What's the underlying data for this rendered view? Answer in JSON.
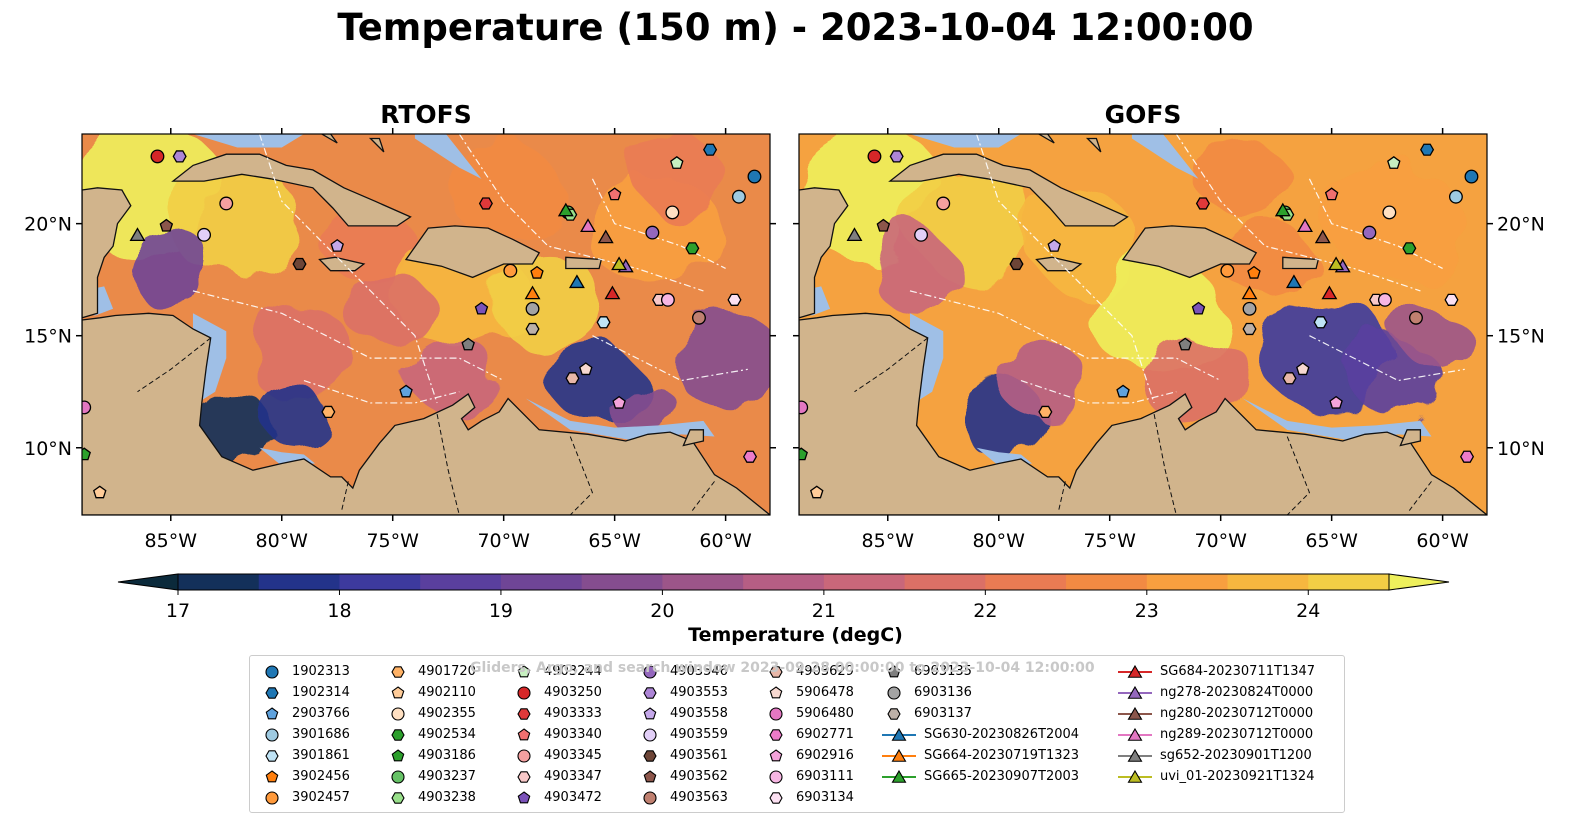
{
  "title": "Temperature (150 m) - 2023-10-04 12:00:00",
  "panels": [
    {
      "title": "RTOFS",
      "field": "rtofs"
    },
    {
      "title": "GOFS",
      "field": "gofs"
    }
  ],
  "map_extent": {
    "lon": [
      -89,
      -58
    ],
    "lat": [
      7,
      24
    ]
  },
  "lon_ticks": [
    {
      "value": -85,
      "label": "85°W"
    },
    {
      "value": -80,
      "label": "80°W"
    },
    {
      "value": -75,
      "label": "75°W"
    },
    {
      "value": -70,
      "label": "70°W"
    },
    {
      "value": -65,
      "label": "65°W"
    },
    {
      "value": -60,
      "label": "60°W"
    }
  ],
  "lat_ticks": [
    {
      "value": 20,
      "label": "20°N"
    },
    {
      "value": 15,
      "label": "15°N"
    },
    {
      "value": 10,
      "label": "10°N"
    }
  ],
  "colorbar": {
    "label": "Temperature (degC)",
    "min": 17,
    "max": 24.5,
    "step": 0.5,
    "ticks": [
      "17",
      "18",
      "19",
      "20",
      "21",
      "22",
      "23",
      "24"
    ],
    "colors": [
      "#0b2a3b",
      "#13305a",
      "#23338a",
      "#3d3a9e",
      "#5a3f9e",
      "#6f4596",
      "#854d8f",
      "#9c5589",
      "#b65e84",
      "#c9677a",
      "#db7066",
      "#ea7b53",
      "#f28a43",
      "#f89f3f",
      "#f6b73f",
      "#f2ce45",
      "#eef05c"
    ],
    "extend": "both"
  },
  "legend_watermark": "Gliders, Argo, and search window 2023-09-28 00:00:00 to 2023-10-04 12:00:00",
  "platforms": [
    {
      "name": "1902313",
      "marker": "circle",
      "color": "#1f77b4",
      "lon": -58.7,
      "lat": 22.1
    },
    {
      "name": "1902314",
      "marker": "hexagon",
      "color": "#1f77b4",
      "lon": -60.7,
      "lat": 23.3
    },
    {
      "name": "2903766",
      "marker": "pentagon",
      "color": "#5fa2dd",
      "lon": -74.4,
      "lat": 12.5
    },
    {
      "name": "3901686",
      "marker": "circle",
      "color": "#9ecae1",
      "lon": -59.4,
      "lat": 21.2
    },
    {
      "name": "3901861",
      "marker": "hexagon",
      "color": "#bfe3f5",
      "lon": -65.5,
      "lat": 15.6
    },
    {
      "name": "3902456",
      "marker": "pentagon",
      "color": "#ff7f0e",
      "lon": -68.5,
      "lat": 17.8
    },
    {
      "name": "3902457",
      "marker": "circle",
      "color": "#ff9a3c",
      "lon": -69.7,
      "lat": 17.9
    },
    {
      "name": "4901720",
      "marker": "hexagon",
      "color": "#ffb266",
      "lon": -77.9,
      "lat": 11.6
    },
    {
      "name": "4902110",
      "marker": "pentagon",
      "color": "#ffcc99",
      "lon": -88.2,
      "lat": 8.0
    },
    {
      "name": "4902355",
      "marker": "circle",
      "color": "#ffe0c2",
      "lon": -62.4,
      "lat": 20.5
    },
    {
      "name": "4902534",
      "marker": "hexagon",
      "color": "#2ca02c",
      "lon": -61.5,
      "lat": 18.9
    },
    {
      "name": "4903186",
      "marker": "pentagon",
      "color": "#2ca02c",
      "lon": -88.9,
      "lat": 9.7
    },
    {
      "name": "4903237",
      "marker": "circle",
      "color": "#66c266",
      "lon": -67.1,
      "lat": 20.5
    },
    {
      "name": "4903238",
      "marker": "hexagon",
      "color": "#98df8a",
      "lon": -67.0,
      "lat": 20.4
    },
    {
      "name": "4903244",
      "marker": "pentagon",
      "color": "#c7f0c0",
      "lon": -62.2,
      "lat": 22.7
    },
    {
      "name": "4903250",
      "marker": "circle",
      "color": "#d62728",
      "lon": -85.6,
      "lat": 23.0
    },
    {
      "name": "4903333",
      "marker": "hexagon",
      "color": "#e0393a",
      "lon": -70.8,
      "lat": 20.9
    },
    {
      "name": "4903340",
      "marker": "pentagon",
      "color": "#f07070",
      "lon": -65.0,
      "lat": 21.3
    },
    {
      "name": "4903345",
      "marker": "circle",
      "color": "#f4a0a0",
      "lon": -82.5,
      "lat": 20.9
    },
    {
      "name": "4903347",
      "marker": "hexagon",
      "color": "#f8c8c8",
      "lon": -63.0,
      "lat": 16.6
    },
    {
      "name": "4903472",
      "marker": "pentagon",
      "color": "#7b52b9",
      "lon": -71.0,
      "lat": 16.2
    },
    {
      "name": "4903546",
      "marker": "circle",
      "color": "#9467bd",
      "lon": -63.3,
      "lat": 19.6
    },
    {
      "name": "4903553",
      "marker": "hexagon",
      "color": "#ad85d6",
      "lon": -84.6,
      "lat": 23.0
    },
    {
      "name": "4903558",
      "marker": "pentagon",
      "color": "#c5a8ea",
      "lon": -77.5,
      "lat": 19.0
    },
    {
      "name": "4903559",
      "marker": "circle",
      "color": "#e2cff7",
      "lon": -83.5,
      "lat": 19.5
    },
    {
      "name": "4903561",
      "marker": "hexagon",
      "color": "#6d4537",
      "lon": -79.2,
      "lat": 18.2
    },
    {
      "name": "4903562",
      "marker": "pentagon",
      "color": "#8c564b",
      "lon": -85.2,
      "lat": 19.9
    },
    {
      "name": "4903563",
      "marker": "circle",
      "color": "#c08070",
      "lon": -61.2,
      "lat": 15.8
    },
    {
      "name": "4903629",
      "marker": "hexagon",
      "color": "#e8b7a8",
      "lon": -66.9,
      "lat": 13.1
    },
    {
      "name": "5906478",
      "marker": "pentagon",
      "color": "#f7d8d0",
      "lon": -66.3,
      "lat": 13.5
    },
    {
      "name": "5906480",
      "marker": "circle",
      "color": "#e377c2",
      "lon": -88.9,
      "lat": 11.8
    },
    {
      "name": "6902771",
      "marker": "hexagon",
      "color": "#ec7bc9",
      "lon": -58.9,
      "lat": 9.6
    },
    {
      "name": "6902916",
      "marker": "pentagon",
      "color": "#f4a3da",
      "lon": -64.8,
      "lat": 12.0
    },
    {
      "name": "6903111",
      "marker": "circle",
      "color": "#f7b6e3",
      "lon": -62.6,
      "lat": 16.6
    },
    {
      "name": "6903134",
      "marker": "hexagon",
      "color": "#fce0f2",
      "lon": -59.6,
      "lat": 16.6
    },
    {
      "name": "6903135",
      "marker": "pentagon",
      "color": "#7f7f7f",
      "lon": -71.6,
      "lat": 14.6
    },
    {
      "name": "6903136",
      "marker": "circle",
      "color": "#a3a3a3",
      "lon": -68.7,
      "lat": 16.2
    },
    {
      "name": "6903137",
      "marker": "hexagon",
      "color": "#bcb0a8",
      "lon": -68.7,
      "lat": 15.3
    },
    {
      "name": "SG630-20230826T2004",
      "marker": "triangle",
      "color": "#1f77b4",
      "lon": -66.7,
      "lat": 17.4,
      "line": true
    },
    {
      "name": "SG664-20230719T1323",
      "marker": "triangle",
      "color": "#ff7f0e",
      "lon": -68.7,
      "lat": 16.9,
      "line": true
    },
    {
      "name": "SG665-20230907T2003",
      "marker": "triangle",
      "color": "#2ca02c",
      "lon": -67.2,
      "lat": 20.6,
      "line": true
    },
    {
      "name": "SG684-20230711T1347",
      "marker": "triangle",
      "color": "#d62728",
      "lon": -65.1,
      "lat": 16.9,
      "line": true
    },
    {
      "name": "ng278-20230824T0000",
      "marker": "triangle",
      "color": "#9467bd",
      "lon": -64.5,
      "lat": 18.1,
      "line": true
    },
    {
      "name": "ng280-20230712T0000",
      "marker": "triangle",
      "color": "#8c564b",
      "lon": -65.4,
      "lat": 19.4,
      "line": true
    },
    {
      "name": "ng289-20230712T0000",
      "marker": "triangle",
      "color": "#e377c2",
      "lon": -66.2,
      "lat": 19.9,
      "line": true
    },
    {
      "name": "sg652-20230901T1200",
      "marker": "triangle",
      "color": "#7f7f7f",
      "lon": -86.5,
      "lat": 19.5,
      "line": true
    },
    {
      "name": "uvi_01-20230921T1324",
      "marker": "triangle",
      "color": "#bcbd22",
      "lon": -64.8,
      "lat": 18.2,
      "line": true
    }
  ]
}
